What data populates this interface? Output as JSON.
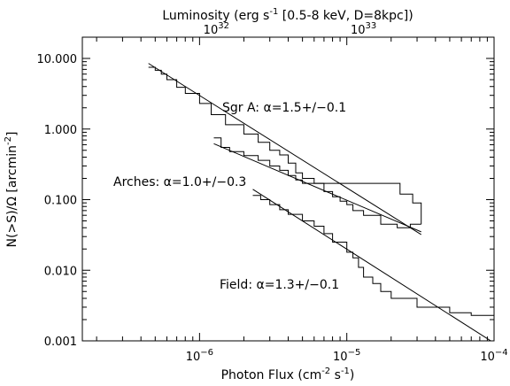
{
  "chart_data": {
    "type": "line",
    "x_scale": "log",
    "y_scale": "log",
    "xlim": [
      1.6e-07,
      0.0001
    ],
    "ylim": [
      0.001,
      20
    ],
    "xlabel": {
      "main": "Photon Flux (cm",
      "e1": "-2",
      "mid": " s",
      "e2": "-1",
      "end": ")"
    },
    "ylabel": {
      "main": "N(>S)/Ω [arcmin",
      "e1": "-2",
      "end": "]"
    },
    "top_axis": {
      "title": {
        "main": "Luminosity (erg s",
        "e1": "-1",
        "end": " [0.5-8 keV, D=8kpc])"
      },
      "ticks": [
        {
          "x": 1.3e-06,
          "base": "10",
          "exp": "32"
        },
        {
          "x": 1.3e-05,
          "base": "10",
          "exp": "33"
        }
      ]
    },
    "x_ticks": [
      {
        "x": 1e-06,
        "base": "10",
        "exp": "−6"
      },
      {
        "x": 1e-05,
        "base": "10",
        "exp": "−5"
      },
      {
        "x": 0.0001,
        "base": "10",
        "exp": "−4"
      }
    ],
    "y_ticks": [
      {
        "y": 10,
        "label": "10.000"
      },
      {
        "y": 1,
        "label": "1.000"
      },
      {
        "y": 0.1,
        "label": "0.100"
      },
      {
        "y": 0.01,
        "label": "0.010"
      },
      {
        "y": 0.001,
        "label": "0.001"
      }
    ],
    "series": [
      {
        "name": "Sgr A",
        "label": "Sgr A: α=1.5+/−0.1",
        "steps": [
          [
            4.5e-07,
            7.5
          ],
          [
            5e-07,
            6.8
          ],
          [
            5.5e-07,
            6.0
          ],
          [
            6e-07,
            5.0
          ],
          [
            7e-07,
            3.9
          ],
          [
            8e-07,
            3.2
          ],
          [
            1e-06,
            2.3
          ],
          [
            1.2e-06,
            1.6
          ],
          [
            1.5e-06,
            1.15
          ],
          [
            2e-06,
            0.85
          ],
          [
            2.5e-06,
            0.65
          ],
          [
            3e-06,
            0.5
          ],
          [
            3.5e-06,
            0.43
          ],
          [
            4e-06,
            0.33
          ],
          [
            4.5e-06,
            0.24
          ],
          [
            5e-06,
            0.2
          ],
          [
            6e-06,
            0.17
          ],
          [
            7e-06,
            0.13
          ],
          [
            8e-06,
            0.11
          ],
          [
            9e-06,
            0.095
          ],
          [
            1e-05,
            0.085
          ],
          [
            1.1e-05,
            0.07
          ],
          [
            1.3e-05,
            0.06
          ],
          [
            1.7e-05,
            0.045
          ],
          [
            2.2e-05,
            0.04
          ],
          [
            2.7e-05,
            0.045
          ],
          [
            3.2e-05,
            0.045
          ]
        ],
        "fit": [
          [
            4.5e-07,
            8.5
          ],
          [
            3.2e-05,
            0.032
          ]
        ]
      },
      {
        "name": "Arches",
        "label": "Arches: α=1.0+/−0.3",
        "steps": [
          [
            1.25e-06,
            0.75
          ],
          [
            1.4e-06,
            0.55
          ],
          [
            1.6e-06,
            0.48
          ],
          [
            2e-06,
            0.42
          ],
          [
            2.5e-06,
            0.36
          ],
          [
            3e-06,
            0.3
          ],
          [
            3.5e-06,
            0.26
          ],
          [
            4e-06,
            0.22
          ],
          [
            4.5e-06,
            0.19
          ],
          [
            5e-06,
            0.17
          ],
          [
            8e-06,
            0.17
          ],
          [
            1.1e-05,
            0.17
          ],
          [
            1.4e-05,
            0.17
          ],
          [
            1.8e-05,
            0.17
          ],
          [
            2.3e-05,
            0.12
          ],
          [
            2.8e-05,
            0.09
          ],
          [
            3.2e-05,
            0.045
          ]
        ],
        "fit": [
          [
            1.25e-06,
            0.62
          ],
          [
            3.2e-05,
            0.035
          ]
        ]
      },
      {
        "name": "Field",
        "label": "Field: α=1.3+/−0.1",
        "steps": [
          [
            2.3e-06,
            0.115
          ],
          [
            2.6e-06,
            0.1
          ],
          [
            3e-06,
            0.085
          ],
          [
            3.5e-06,
            0.072
          ],
          [
            4e-06,
            0.062
          ],
          [
            5e-06,
            0.05
          ],
          [
            6e-06,
            0.042
          ],
          [
            7e-06,
            0.033
          ],
          [
            8e-06,
            0.025
          ],
          [
            1e-05,
            0.018
          ],
          [
            1.1e-05,
            0.015
          ],
          [
            1.2e-05,
            0.011
          ],
          [
            1.3e-05,
            0.008
          ],
          [
            1.5e-05,
            0.0065
          ],
          [
            1.7e-05,
            0.005
          ],
          [
            2e-05,
            0.004
          ],
          [
            3e-05,
            0.003
          ],
          [
            5e-05,
            0.0025
          ],
          [
            7e-05,
            0.0023
          ],
          [
            9.5e-05,
            0.0023
          ],
          [
            0.0001,
            0.001
          ]
        ],
        "fit": [
          [
            2.3e-06,
            0.14
          ],
          [
            9.5e-05,
            0.001
          ]
        ]
      }
    ]
  }
}
